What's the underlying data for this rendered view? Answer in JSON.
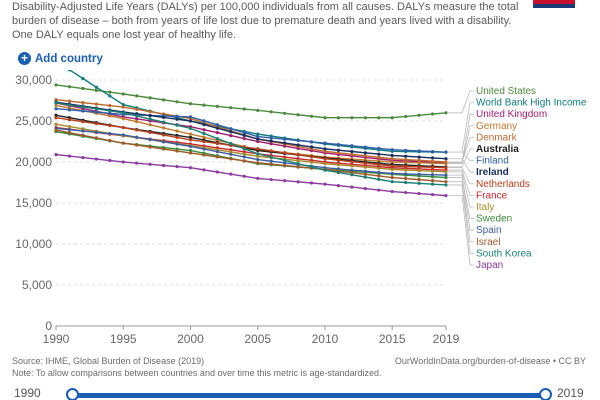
{
  "subtitle": "Disability-Adjusted Life Years (DALYs) per 100,000 individuals from all causes. DALYs measure the total burden of disease – both from years of life lost due to premature death and years lived with a disability. One DALY equals one lost year of healthy life.",
  "add_country_label": "Add country",
  "source": "Source: IHME, Global Burden of Disease (2019)",
  "note": "Note: To allow comparisons between countries and over time this metric is age-standardized.",
  "credit": "OurWorldInData.org/burden-of-disease • CC BY",
  "timeline": {
    "start": "1990",
    "end": "2019"
  },
  "colors": {
    "accent": "#1a5fb4",
    "track": "#1a5fb4"
  },
  "chart_data": {
    "type": "line",
    "title": "",
    "xlabel": "",
    "ylabel": "",
    "xlim": [
      1990,
      2019
    ],
    "ylim": [
      0,
      30000
    ],
    "x_ticks": [
      "1990",
      "1995",
      "2000",
      "2005",
      "2010",
      "2015",
      "2019"
    ],
    "y_ticks": [
      "0",
      "5,000",
      "10,000",
      "15,000",
      "20,000",
      "25,000",
      "30,000"
    ],
    "y_tick_values": [
      0,
      5000,
      10000,
      15000,
      20000,
      25000,
      30000
    ],
    "grid": true,
    "legend": "right",
    "x": [
      1990,
      1995,
      2000,
      2005,
      2010,
      2015,
      2019
    ],
    "series": [
      {
        "name": "United States",
        "color": "#4c8a3e",
        "values": [
          29400,
          28300,
          27100,
          26300,
          25400,
          25400,
          26000
        ]
      },
      {
        "name": "World Bank High Income",
        "color": "#0e7c7b",
        "values": [
          32300,
          27000,
          25000,
          23400,
          22200,
          21300,
          21200
        ]
      },
      {
        "name": "United Kingdom",
        "color": "#a21c6e",
        "values": [
          27200,
          25500,
          24300,
          22500,
          21100,
          20200,
          19900
        ]
      },
      {
        "name": "Germany",
        "color": "#c07a2c",
        "values": [
          26900,
          25300,
          23400,
          21500,
          20600,
          20000,
          19800
        ]
      },
      {
        "name": "Denmark",
        "color": "#c0692f",
        "values": [
          27600,
          26700,
          25300,
          22800,
          21300,
          20400,
          20000
        ]
      },
      {
        "name": "Australia",
        "color": "#222222",
        "values": [
          25700,
          24200,
          23000,
          21400,
          20500,
          19700,
          19400
        ]
      },
      {
        "name": "Finland",
        "color": "#2e5fa8",
        "values": [
          26500,
          25800,
          25500,
          23100,
          22300,
          21500,
          21200
        ]
      },
      {
        "name": "Ireland",
        "color": "#19305e",
        "values": [
          27300,
          26100,
          25000,
          22800,
          21600,
          20800,
          20400
        ]
      },
      {
        "name": "Netherlands",
        "color": "#b5401e",
        "values": [
          25400,
          24200,
          22700,
          21600,
          20400,
          19500,
          19300
        ]
      },
      {
        "name": "France",
        "color": "#c9282d",
        "values": [
          24200,
          23200,
          22200,
          21000,
          20000,
          19300,
          19000
        ]
      },
      {
        "name": "Italy",
        "color": "#a78a2c",
        "values": [
          24600,
          23200,
          22000,
          20700,
          19800,
          19100,
          18800
        ]
      },
      {
        "name": "Sweden",
        "color": "#3a8a3a",
        "values": [
          23700,
          22300,
          21400,
          19800,
          19100,
          18500,
          18100
        ]
      },
      {
        "name": "Spain",
        "color": "#3d5fa0",
        "values": [
          24100,
          23300,
          21900,
          20300,
          19300,
          18600,
          18400
        ]
      },
      {
        "name": "Israel",
        "color": "#9e5a2a",
        "values": [
          23900,
          22300,
          21100,
          19900,
          19100,
          18100,
          17600
        ]
      },
      {
        "name": "South Korea",
        "color": "#1c7f74",
        "values": [
          27200,
          26000,
          24100,
          21000,
          19000,
          17600,
          17200
        ]
      },
      {
        "name": "Japan",
        "color": "#8c3ba0",
        "values": [
          20900,
          20000,
          19300,
          18000,
          17300,
          16400,
          15900
        ]
      }
    ]
  }
}
